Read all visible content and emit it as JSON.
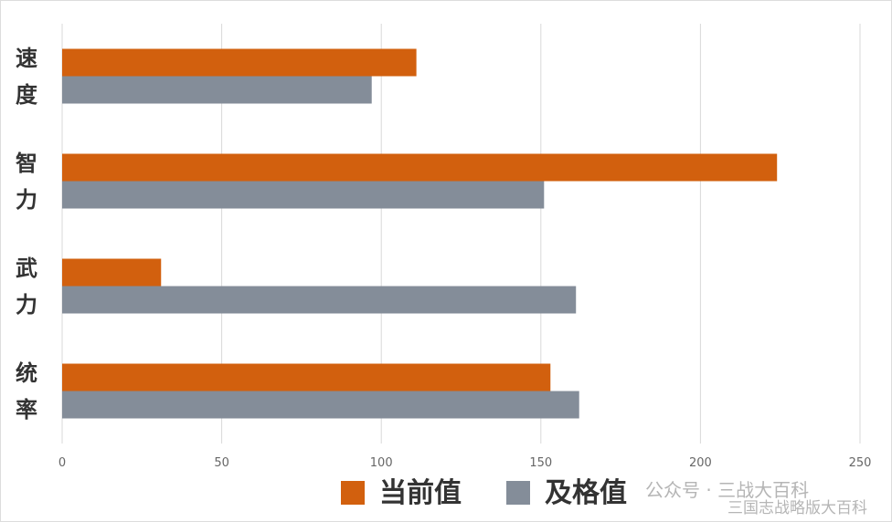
{
  "chart_data": {
    "type": "hbar",
    "categories": [
      "速度",
      "智力",
      "武力",
      "统率"
    ],
    "series": [
      {
        "name": "当前值",
        "color": "#d2600e",
        "values": [
          111,
          224,
          31,
          153
        ]
      },
      {
        "name": "及格值",
        "color": "#848d99",
        "values": [
          97,
          151,
          161,
          162
        ]
      }
    ],
    "xlim": [
      0,
      250
    ],
    "xticks": [
      0,
      50,
      100,
      150,
      200,
      250
    ],
    "grid": true,
    "legend": "bottom"
  },
  "watermark": {
    "line1": "公众号 · 三战大百科",
    "line2": "三国志战略版大百科"
  }
}
